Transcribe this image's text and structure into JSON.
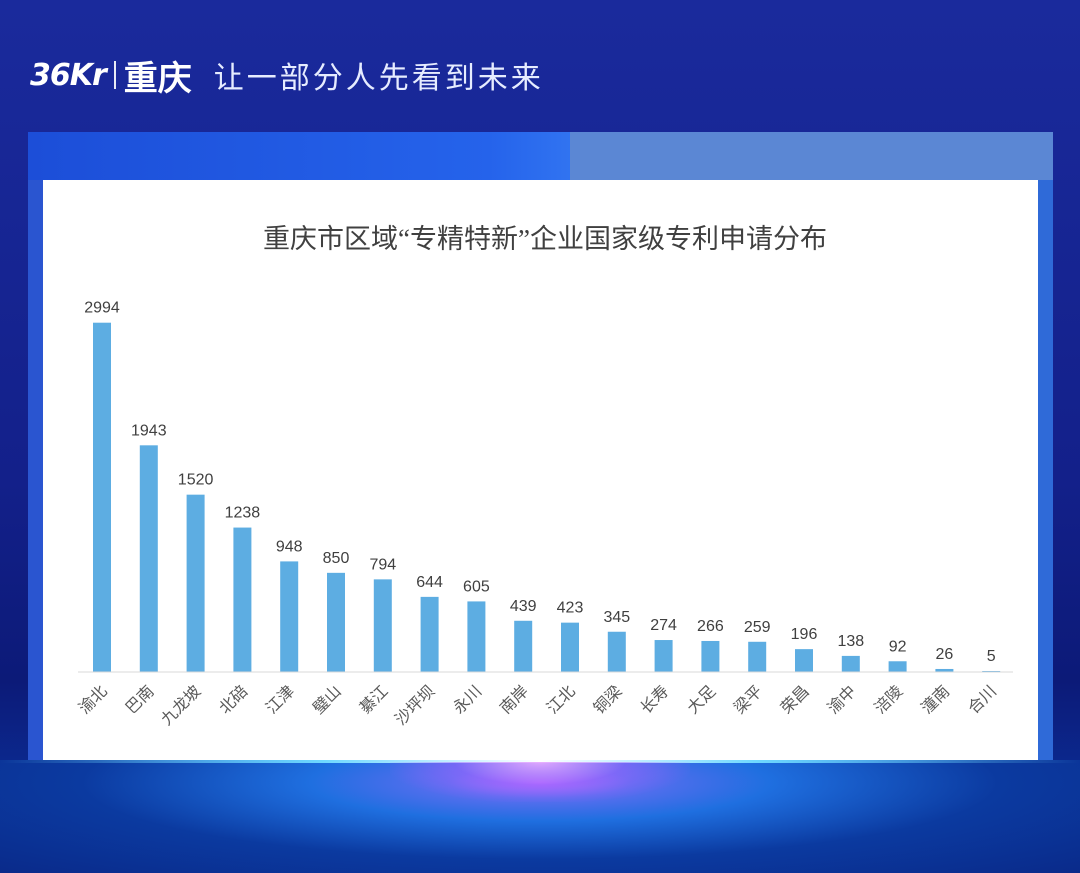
{
  "header": {
    "logo_mark": "36Kr",
    "logo_city": "重庆",
    "slogan": "让一部分人先看到未来"
  },
  "colors": {
    "bar": "#5dade2",
    "background": "#13208a",
    "card": "#ffffff"
  },
  "chart_data": {
    "type": "bar",
    "title": "重庆市区域“专精特新”企业国家级专利申请分布",
    "xlabel": "",
    "ylabel": "",
    "categories": [
      "渝北",
      "巴南",
      "九龙坡",
      "北碚",
      "江津",
      "璧山",
      "綦江",
      "沙坪坝",
      "永川",
      "南岸",
      "江北",
      "铜梁",
      "长寿",
      "大足",
      "梁平",
      "荣昌",
      "渝中",
      "涪陵",
      "潼南",
      "合川"
    ],
    "values": [
      2994,
      1943,
      1520,
      1238,
      948,
      850,
      794,
      644,
      605,
      439,
      423,
      345,
      274,
      266,
      259,
      196,
      138,
      92,
      26,
      5
    ],
    "ylim": [
      0,
      3000
    ],
    "grid": false,
    "legend": "none",
    "data_labels": true
  }
}
